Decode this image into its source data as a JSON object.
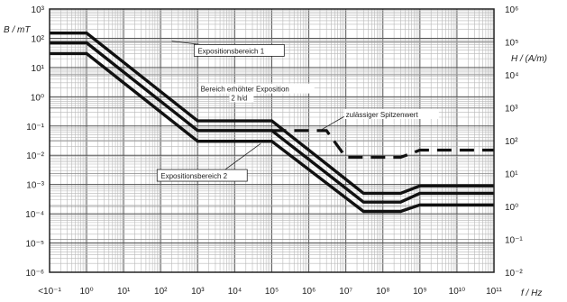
{
  "chart_data": {
    "type": "line",
    "x_scale": "log",
    "y_scale": "log",
    "xlabel": "f / Hz",
    "ylabel_left": "B / mT",
    "ylabel_right": "H / (A/m)",
    "xlim": [
      0.1,
      100000000000
    ],
    "ylim_left": [
      1e-06,
      1000
    ],
    "ylim_right": [
      0.01,
      1000000
    ],
    "grid": true,
    "x_ticks": [
      {
        "value": 0.1,
        "label": "<10⁻¹"
      },
      {
        "value": 1,
        "label": "10⁰"
      },
      {
        "value": 10,
        "label": "10¹"
      },
      {
        "value": 100,
        "label": "10²"
      },
      {
        "value": 1000,
        "label": "10³"
      },
      {
        "value": 10000,
        "label": "10⁴"
      },
      {
        "value": 100000,
        "label": "10⁵"
      },
      {
        "value": 1000000,
        "label": "10⁶"
      },
      {
        "value": 10000000,
        "label": "10⁷"
      },
      {
        "value": 100000000,
        "label": "10⁸"
      },
      {
        "value": 1000000000,
        "label": "10⁹"
      },
      {
        "value": 10000000000,
        "label": "10¹⁰"
      },
      {
        "value": 100000000000,
        "label": "10¹¹"
      }
    ],
    "y_ticks_left": [
      {
        "value": 1000,
        "label": "10³"
      },
      {
        "value": 100,
        "label": "10²"
      },
      {
        "value": 10,
        "label": "10¹"
      },
      {
        "value": 1,
        "label": "10⁰"
      },
      {
        "value": 0.1,
        "label": "10⁻¹"
      },
      {
        "value": 0.01,
        "label": "10⁻²"
      },
      {
        "value": 0.001,
        "label": "10⁻³"
      },
      {
        "value": 0.0001,
        "label": "10⁻⁴"
      },
      {
        "value": 1e-05,
        "label": "10⁻⁵"
      },
      {
        "value": 1e-06,
        "label": "10⁻⁶"
      }
    ],
    "y_ticks_right": [
      {
        "value": 1000000,
        "label": "10⁶"
      },
      {
        "value": 100000,
        "label": "10⁵"
      },
      {
        "value": 10000,
        "label": "10⁴"
      },
      {
        "value": 1000,
        "label": "10³"
      },
      {
        "value": 100,
        "label": "10²"
      },
      {
        "value": 10,
        "label": "10¹"
      },
      {
        "value": 1,
        "label": "10⁰"
      },
      {
        "value": 0.1,
        "label": "10⁻¹"
      },
      {
        "value": 0.01,
        "label": "10⁻²"
      }
    ],
    "series": [
      {
        "style": "solid",
        "x": [
          0.1,
          1,
          1000,
          30000,
          100000,
          30000000,
          300000000,
          1000000000,
          100000000000
        ],
        "y": [
          150,
          150,
          0.15,
          0.15,
          0.15,
          0.0005,
          0.0005,
          0.0009,
          0.0009
        ]
      },
      {
        "style": "solid",
        "x": [
          0.1,
          1,
          1000,
          30000,
          100000,
          30000000,
          300000000,
          1000000000,
          100000000000
        ],
        "y": [
          70,
          70,
          0.07,
          0.07,
          0.07,
          0.00025,
          0.00025,
          0.0005,
          0.0005
        ]
      },
      {
        "style": "solid",
        "x": [
          0.1,
          1,
          1000,
          30000,
          100000,
          30000000,
          300000000,
          1000000000,
          100000000000
        ],
        "y": [
          30,
          30,
          0.03,
          0.03,
          0.03,
          0.00012,
          0.00012,
          0.0002,
          0.0002
        ]
      },
      {
        "style": "dashed",
        "x": [
          100000,
          1000000,
          3000000,
          10000000,
          300000000,
          1000000000,
          100000000000
        ],
        "y": [
          0.07,
          0.07,
          0.07,
          0.0085,
          0.0085,
          0.015,
          0.015
        ]
      }
    ],
    "annotations": [
      {
        "text": "Expositionsbereich 1",
        "box": true,
        "x": 1000,
        "y": 30,
        "pointer": {
          "x": 200,
          "y": 80
        }
      },
      {
        "text": "Bereich erhöhter Exposition",
        "box": false,
        "x": 1200,
        "y": 1.5
      },
      {
        "text": "2 h/d",
        "box": false,
        "x": 8000,
        "y": 0.75
      },
      {
        "text": "zulässiger Spitzenwert",
        "box": false,
        "x": 10000000,
        "y": 0.2,
        "pointer": {
          "x": 2000000,
          "y": 0.07
        }
      },
      {
        "text": "Expositionsbereich 2",
        "box": true,
        "x": 100,
        "y": 0.0016,
        "pointer": {
          "x": 50000,
          "y": 0.025
        }
      }
    ]
  }
}
